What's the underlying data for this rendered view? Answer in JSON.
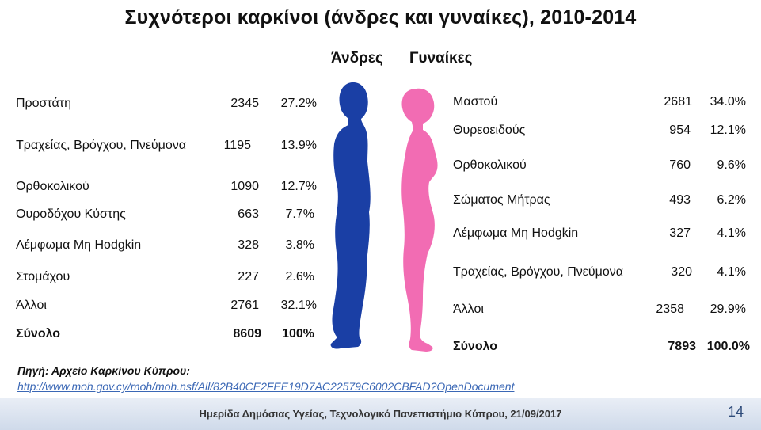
{
  "title": "Συχνότεροι καρκίνοι (άνδρες και γυναίκες), 2010-2014",
  "men": {
    "heading": "Άνδρες",
    "rows": [
      {
        "name": "Προστάτη",
        "count": "2345",
        "pct": "27.2%"
      },
      {
        "name": "Τραχείας, Βρόγχου, Πνεύμονα",
        "count": "1195",
        "pct": "13.9%"
      },
      {
        "name": "Ορθοκολικού",
        "count": "1090",
        "pct": "12.7%"
      },
      {
        "name": "Ουροδόχου Κύστης",
        "count": "663",
        "pct": "7.7%"
      },
      {
        "name": "Λέμφωμα Μη  Hodgkin",
        "count": "328",
        "pct": "3.8%"
      },
      {
        "name": "Στομάχου",
        "count": "227",
        "pct": "2.6%"
      },
      {
        "name": "Άλλοι",
        "count": "2761",
        "pct": "32.1%"
      }
    ],
    "total": {
      "name": "Σύνολο",
      "count": "8609",
      "pct": "100%"
    },
    "color": "#1a3fa5"
  },
  "women": {
    "heading": "Γυναίκες",
    "rows": [
      {
        "name": "Μαστού",
        "count": "2681",
        "pct": "34.0%"
      },
      {
        "name": "Θυρεοειδούς",
        "count": "954",
        "pct": "12.1%"
      },
      {
        "name": "Ορθοκολικού",
        "count": "760",
        "pct": "9.6%"
      },
      {
        "name": "Σώματος Μήτρας",
        "count": "493",
        "pct": "6.2%"
      },
      {
        "name": "Λέμφωμα Μη Hodgkin",
        "count": "327",
        "pct": "4.1%"
      },
      {
        "name": "Τραχείας, Βρόγχου, Πνεύμονα",
        "count": "320",
        "pct": "4.1%"
      },
      {
        "name": "Άλλοι",
        "count": "2358",
        "pct": "29.9%"
      }
    ],
    "total": {
      "name": "Σύνολο",
      "count": "7893",
      "pct": "100.0%"
    },
    "color": "#f26cb3"
  },
  "source_label": "Πηγή: Αρχείο Καρκίνου Κύπρου:",
  "source_url": "http://www.moh.gov.cy/moh/moh.nsf/All/82B40CE2FEE19D7AC22579C6002CBFAD?OpenDocument",
  "footer": "Ημερίδα Δημόσιας Υγείας, Τεχνολογικό Πανεπιστήμιο Κύπρου, 21/09/2017",
  "page_number": "14"
}
